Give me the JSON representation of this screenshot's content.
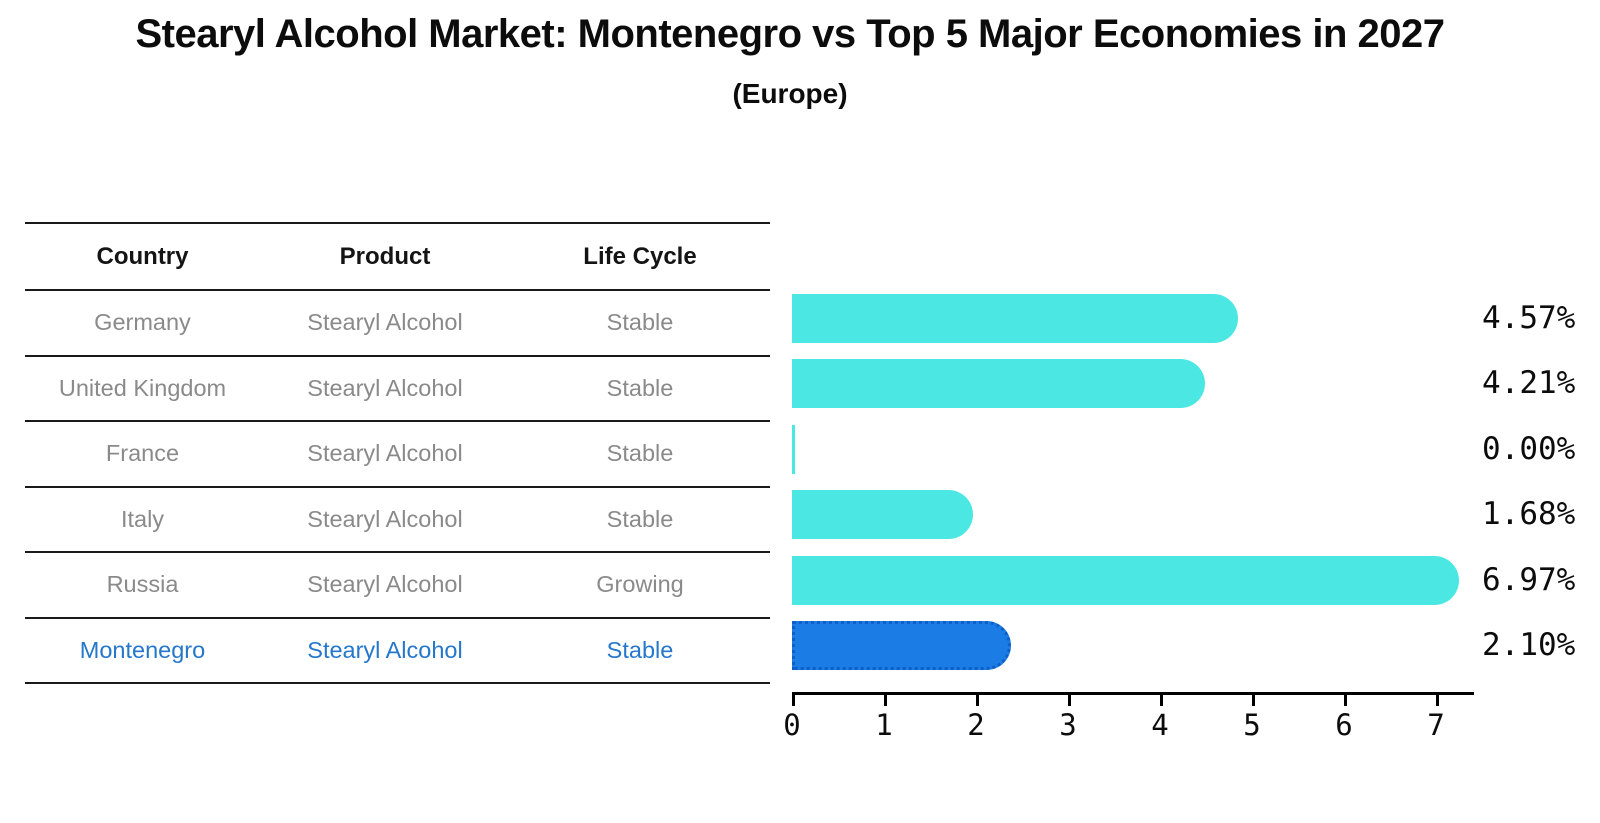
{
  "header": {
    "title": "Stearyl Alcohol Market: Montenegro vs Top 5 Major Economies in 2027",
    "subtitle": "(Europe)"
  },
  "table": {
    "columns": [
      "Country",
      "Product",
      "Life Cycle"
    ],
    "rows": [
      {
        "country": "Germany",
        "product": "Stearyl Alcohol",
        "life_cycle": "Stable"
      },
      {
        "country": "United Kingdom",
        "product": "Stearyl Alcohol",
        "life_cycle": "Stable"
      },
      {
        "country": "France",
        "product": "Stearyl Alcohol",
        "life_cycle": "Stable"
      },
      {
        "country": "Italy",
        "product": "Stearyl Alcohol",
        "life_cycle": "Stable"
      },
      {
        "country": "Russia",
        "product": "Stearyl Alcohol",
        "life_cycle": "Growing"
      },
      {
        "country": "Montenegro",
        "product": "Stearyl Alcohol",
        "life_cycle": "Stable"
      }
    ]
  },
  "chart_data": {
    "type": "bar",
    "orientation": "horizontal",
    "title": "Stearyl Alcohol Market: Montenegro vs Top 5 Major Economies in 2027 (Europe)",
    "categories": [
      "Germany",
      "United Kingdom",
      "France",
      "Italy",
      "Russia",
      "Montenegro"
    ],
    "values": [
      4.57,
      4.21,
      0.0,
      1.68,
      6.97,
      2.1
    ],
    "value_labels": [
      "4.57%",
      "4.21%",
      "0.00%",
      "1.68%",
      "6.97%",
      "2.10%"
    ],
    "highlight_index": 5,
    "xlabel": "",
    "ylabel": "",
    "xlim": [
      0,
      7.4
    ],
    "xticks": [
      0,
      1,
      2,
      3,
      4,
      5,
      6,
      7
    ],
    "grid": "off",
    "legend": "none",
    "bar_color": "#4ae7e3",
    "highlight_bar_color": "#1b7ce5",
    "highlight_text_color": "#2577cb"
  }
}
